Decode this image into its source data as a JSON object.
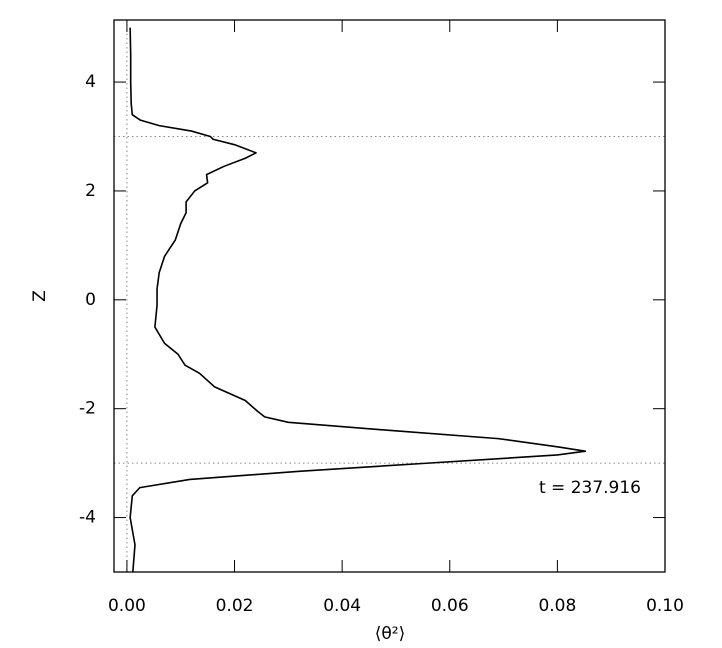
{
  "chart_data": {
    "type": "line",
    "x_label": "⟨θ²⟩",
    "y_label": "Z",
    "annotation": "t = 237.916",
    "x": [
      0.0006,
      0.0007,
      0.0007,
      0.0008,
      0.001,
      0.0025,
      0.006,
      0.012,
      0.0155,
      0.016,
      0.02,
      0.024,
      0.022,
      0.018,
      0.0148,
      0.015,
      0.0126,
      0.011,
      0.011,
      0.01,
      0.009,
      0.007,
      0.006,
      0.0056,
      0.0056,
      0.0052,
      0.007,
      0.0095,
      0.0108,
      0.0135,
      0.0163,
      0.022,
      0.0243,
      0.0256,
      0.03,
      0.049,
      0.069,
      0.08,
      0.0852,
      0.08,
      0.056,
      0.032,
      0.0117,
      0.0024,
      0.001,
      0.0006,
      0.0015,
      0.0011
    ],
    "series": [
      {
        "color": "#000000",
        "values": [
          5,
          4.5,
          4,
          3.6,
          3.4,
          3.3,
          3.2,
          3.1,
          3.0,
          2.95,
          2.85,
          2.7,
          2.6,
          2.45,
          2.3,
          2.15,
          2.0,
          1.8,
          1.6,
          1.4,
          1.1,
          0.8,
          0.5,
          0.2,
          -0.1,
          -0.5,
          -0.8,
          -1.0,
          -1.2,
          -1.35,
          -1.6,
          -1.85,
          -2.05,
          -2.15,
          -2.25,
          -2.4,
          -2.55,
          -2.7,
          -2.78,
          -2.85,
          -3.0,
          -3.15,
          -3.3,
          -3.45,
          -3.6,
          -4.0,
          -4.5,
          -5
        ]
      }
    ],
    "xlim": [
      -0.0024,
      0.1
    ],
    "ylim": [
      -5,
      5.14
    ],
    "xticks": [
      {
        "value": 0,
        "label": "0.00"
      },
      {
        "value": 0.02,
        "label": "0.02"
      },
      {
        "value": 0.04,
        "label": "0.04"
      },
      {
        "value": 0.06,
        "label": "0.06"
      },
      {
        "value": 0.08,
        "label": "0.08"
      },
      {
        "value": 0.1,
        "label": "0.10"
      }
    ],
    "yticks": [
      -4,
      -2,
      0,
      2,
      4
    ],
    "reference_lines": {
      "x": [
        0
      ],
      "y": [
        3,
        -3
      ]
    }
  }
}
